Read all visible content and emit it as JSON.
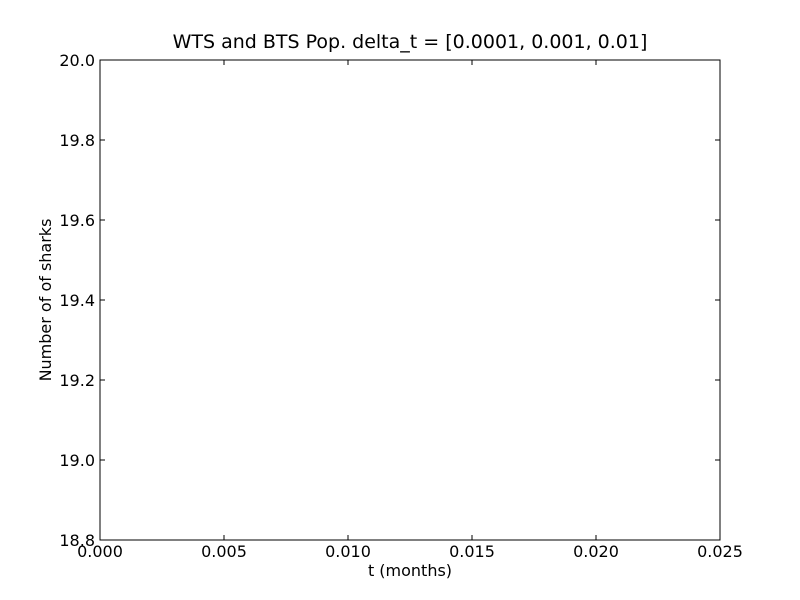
{
  "chart_data": {
    "type": "line",
    "title": "WTS and BTS Pop. delta_t = [0.0001, 0.001, 0.01]",
    "xlabel": "t (months)",
    "ylabel": "Number of of sharks",
    "xlim": [
      0.0,
      0.025
    ],
    "ylim": [
      18.8,
      20.0
    ],
    "x_ticks": [
      0.0,
      0.005,
      0.01,
      0.015,
      0.02,
      0.025
    ],
    "x_tick_labels": [
      "0.000",
      "0.005",
      "0.010",
      "0.015",
      "0.020",
      "0.025"
    ],
    "y_ticks": [
      18.8,
      19.0,
      19.2,
      19.4,
      19.6,
      19.8,
      20.0
    ],
    "y_tick_labels": [
      "18.8",
      "19.0",
      "19.2",
      "19.4",
      "19.6",
      "19.8",
      "20.0"
    ],
    "series": [],
    "grid": false,
    "legend": "none"
  }
}
